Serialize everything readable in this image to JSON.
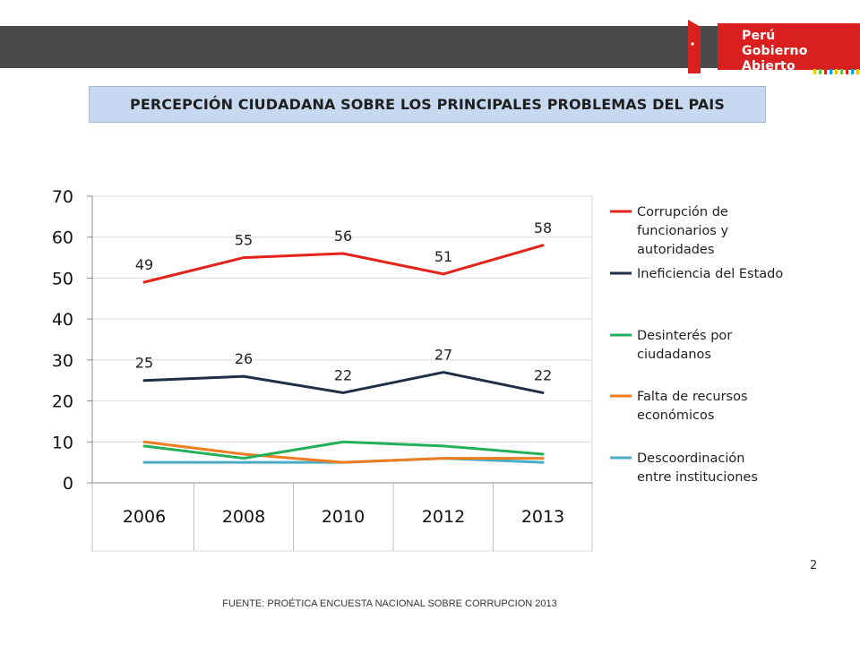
{
  "header": {
    "brand_line1": "Perú",
    "brand_line2": "Gobierno Abierto"
  },
  "title": "PERCEPCIÓN CIUDADANA SOBRE LOS PRINCIPALES PROBLEMAS DEL PAIS",
  "page_number": "2",
  "source": "FUENTE: PROÉTICA ENCUESTA NACIONAL SOBRE CORRUPCION 2013",
  "colors": {
    "topbar": "#4a4a4c",
    "brand_red": "#d9201f",
    "title_bg": "#c6d9f1"
  },
  "chart_data": {
    "type": "line",
    "categories": [
      "2006",
      "2008",
      "2010",
      "2012",
      "2013"
    ],
    "ylim": [
      0,
      70
    ],
    "yticks": [
      0,
      10,
      20,
      30,
      40,
      50,
      60,
      70
    ],
    "grid": true,
    "legend_position": "right",
    "series": [
      {
        "name": "Corrupción de funcionarios y autoridades",
        "legend_lines": [
          "Corrupción de",
          "funcionarios y",
          "autoridades"
        ],
        "color": "#e2231a",
        "values": [
          49,
          55,
          56,
          51,
          58
        ],
        "labels": [
          "49",
          "55",
          "56",
          "51",
          "58"
        ]
      },
      {
        "name": "Ineficiencia del Estado",
        "legend_lines": [
          "Ineficiencia del Estado"
        ],
        "color": "#1f2f45",
        "values": [
          25,
          26,
          22,
          27,
          22
        ],
        "labels": [
          "25",
          "26",
          "22",
          "27",
          "22"
        ]
      },
      {
        "name": "Desinterés por ciudadanos",
        "legend_lines": [
          "Desinterés por",
          "ciudadanos"
        ],
        "color": "#22b05a",
        "values": [
          9,
          6,
          10,
          9,
          7
        ],
        "labels": []
      },
      {
        "name": "Falta de recursos económicos",
        "legend_lines": [
          "Falta de recursos",
          "económicos"
        ],
        "color": "#ee7d22",
        "values": [
          10,
          7,
          5,
          6,
          6
        ],
        "labels": []
      },
      {
        "name": "Descoordinación entre instituciones",
        "legend_lines": [
          "Descoordinación",
          "entre instituciones"
        ],
        "color": "#4bacc6",
        "values": [
          5,
          5,
          5,
          6,
          5
        ],
        "labels": []
      }
    ]
  }
}
